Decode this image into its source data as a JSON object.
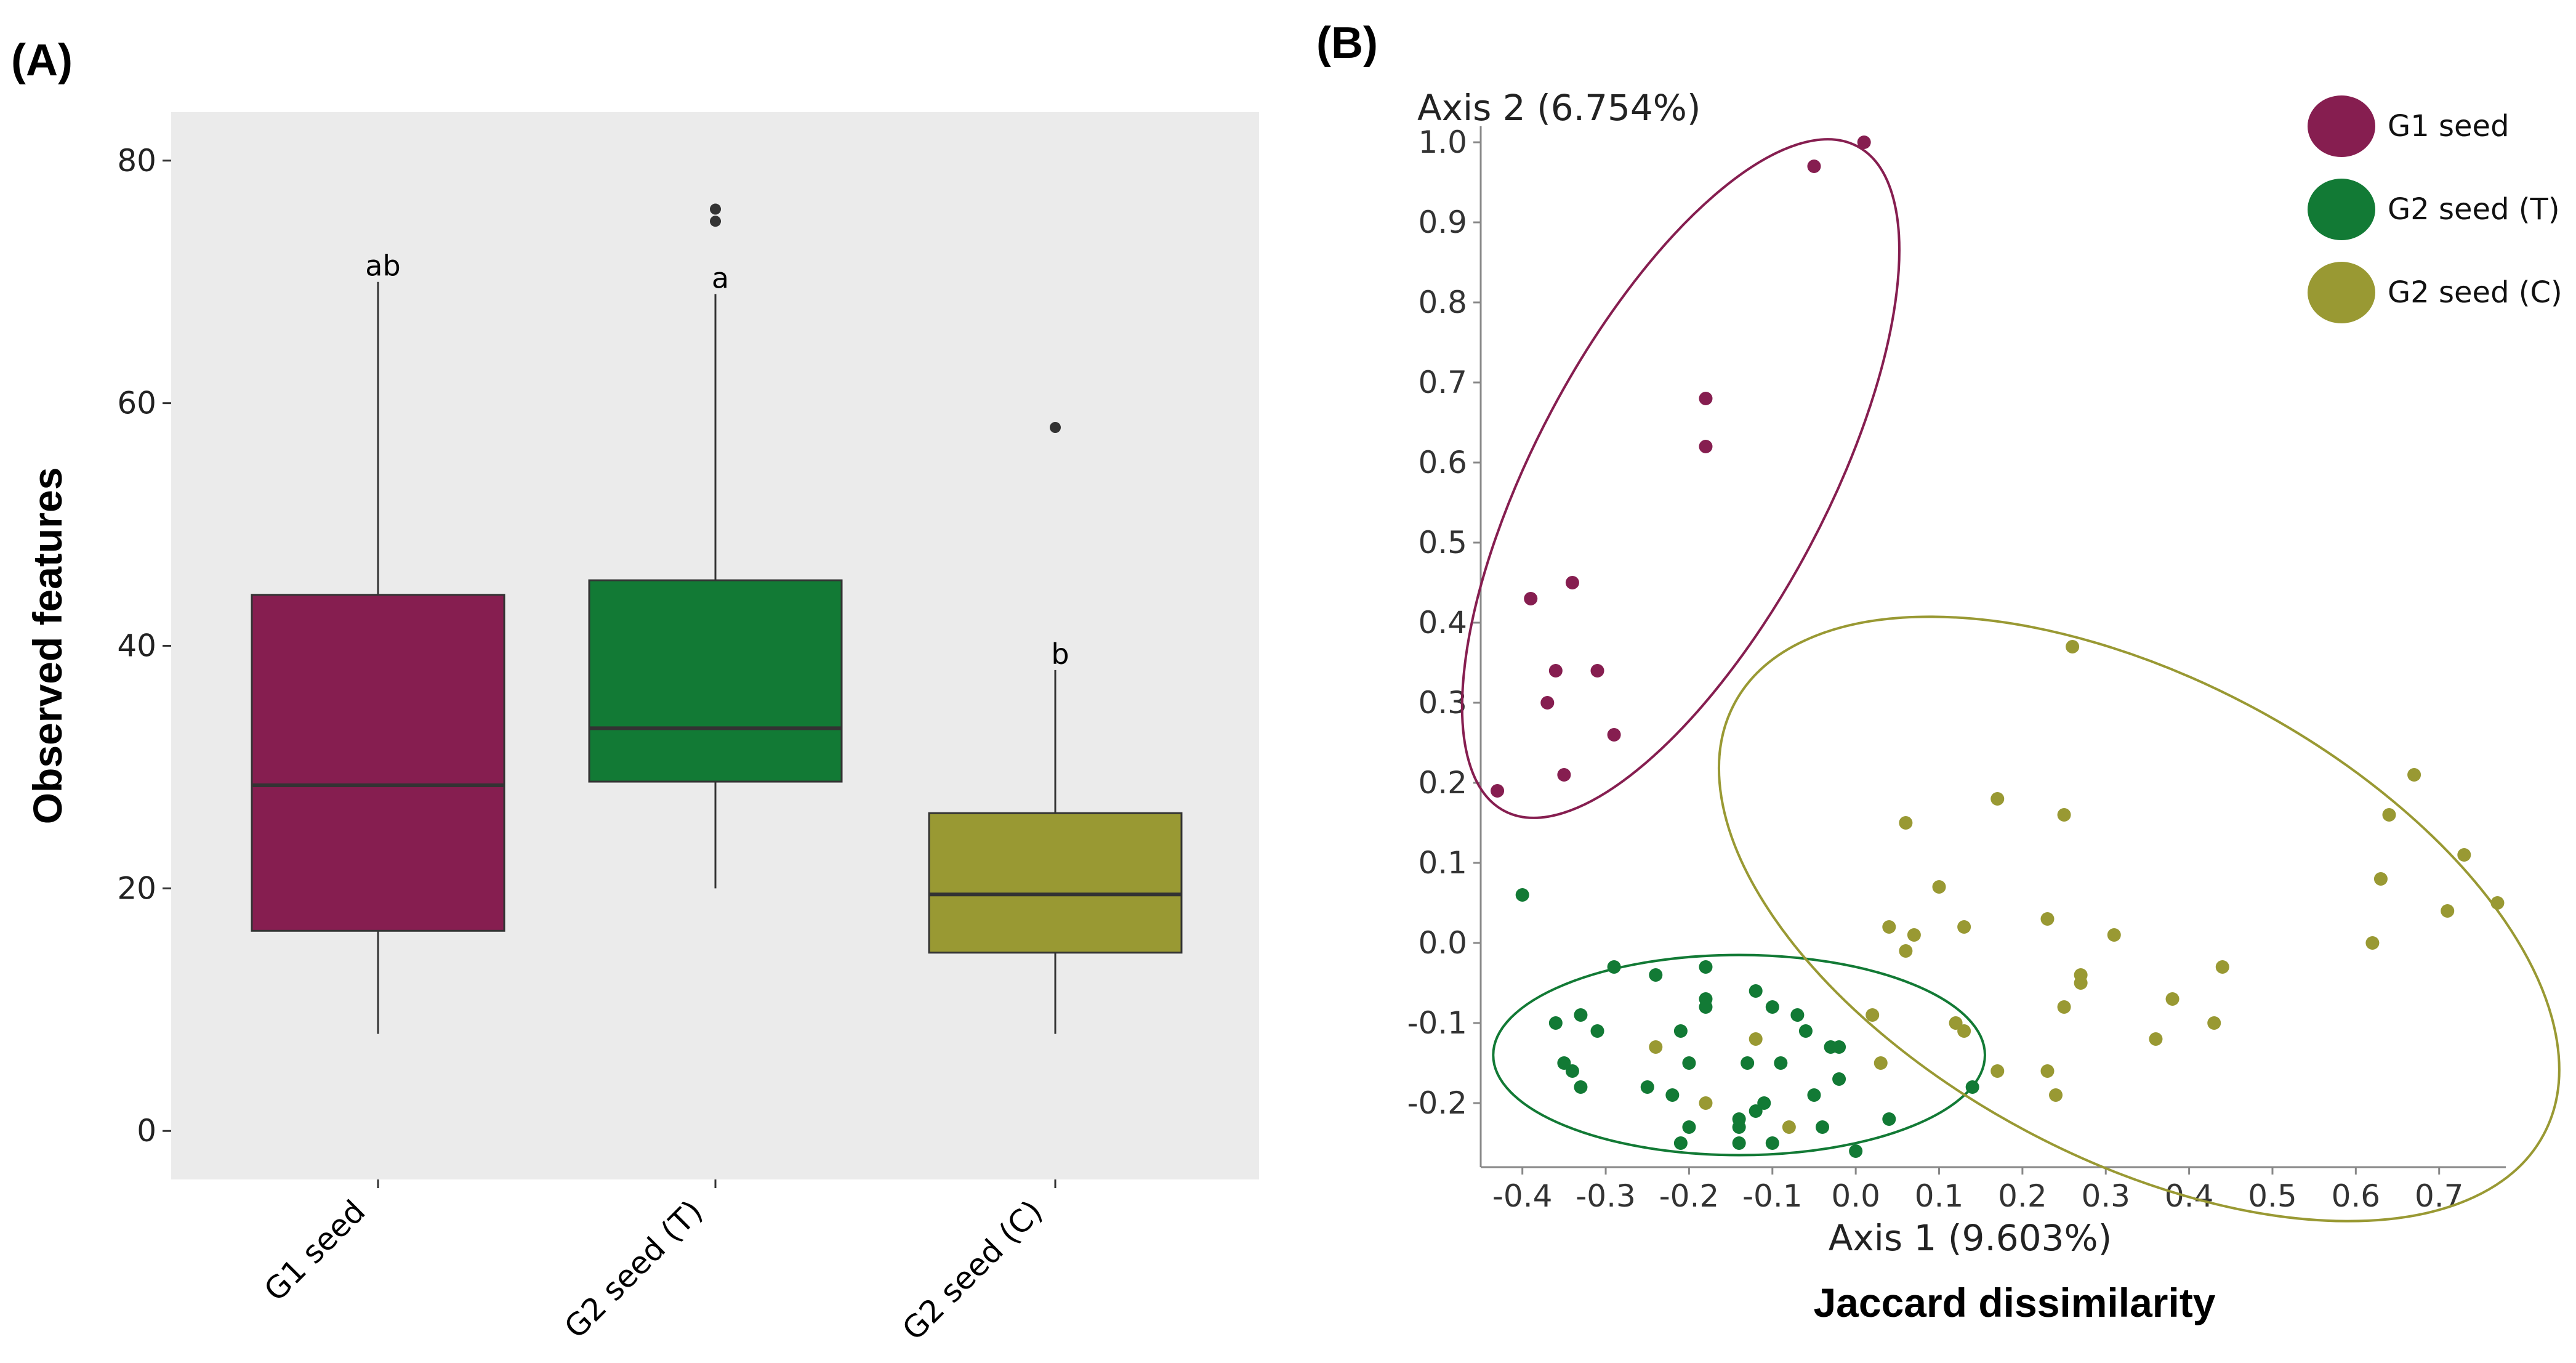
{
  "panel_a_label": "(A)",
  "panel_b_label": "(B)",
  "chart_data": [
    {
      "type": "box",
      "panel": "(A)",
      "title": "",
      "xlabel": "",
      "ylabel": "Observed features",
      "ylim": [
        -4,
        84
      ],
      "yticks": [
        "0",
        "20",
        "40",
        "60",
        "80"
      ],
      "categories": [
        "G1 seed",
        "G2 seed  (T)",
        "G2 seed  (C)"
      ],
      "colors": [
        "#861e50",
        "#127a35",
        "#999933"
      ],
      "boxes": [
        {
          "name": "G1 seed",
          "whisker_low": 8,
          "q1": 16.5,
          "median": 28.5,
          "q3": 44.2,
          "whisker_high": 70,
          "outliers": [],
          "letter": "ab"
        },
        {
          "name": "G2 seed  (T)",
          "whisker_low": 20,
          "q1": 28.8,
          "median": 33.2,
          "q3": 45.4,
          "whisker_high": 69,
          "outliers": [
            75,
            76
          ],
          "letter": "a"
        },
        {
          "name": "G2 seed  (C)",
          "whisker_low": 8,
          "q1": 14.7,
          "median": 19.5,
          "q3": 26.2,
          "whisker_high": 38,
          "outliers": [
            58
          ],
          "letter": "b"
        }
      ]
    },
    {
      "type": "scatter",
      "panel": "(B)",
      "subtitle": "Jaccard dissimilarity",
      "xlabel": "Axis 1 (9.603%)",
      "ylabel": "Axis 2 (6.754%)",
      "xlim": [
        -0.45,
        0.78
      ],
      "ylim": [
        -0.28,
        1.02
      ],
      "xticks": [
        "-0.4",
        "-0.3",
        "-0.2",
        "-0.1",
        "0.0",
        "0.1",
        "0.2",
        "0.3",
        "0.4",
        "0.5",
        "0.6",
        "0.7"
      ],
      "yticks": [
        "-0.2",
        "-0.1",
        "0.0",
        "0.1",
        "0.2",
        "0.3",
        "0.4",
        "0.5",
        "0.6",
        "0.7",
        "0.8",
        "0.9",
        "1.0"
      ],
      "series": [
        {
          "name": "G1 seed",
          "color": "#861e50",
          "x": [
            0.01,
            -0.05,
            -0.18,
            -0.18,
            -0.39,
            -0.34,
            -0.36,
            -0.31,
            -0.37,
            -0.29,
            -0.35,
            -0.43
          ],
          "y": [
            1.0,
            0.97,
            0.68,
            0.62,
            0.43,
            0.45,
            0.34,
            0.34,
            0.3,
            0.26,
            0.21,
            0.19
          ]
        },
        {
          "name": "G2 seed (T)",
          "color": "#127a35",
          "x": [
            -0.4,
            -0.29,
            -0.24,
            -0.18,
            -0.12,
            -0.18,
            -0.18,
            -0.1,
            -0.07,
            -0.33,
            -0.36,
            -0.31,
            -0.21,
            -0.06,
            -0.03,
            -0.02,
            -0.35,
            -0.34,
            -0.2,
            -0.13,
            -0.09,
            -0.05,
            -0.33,
            -0.25,
            -0.11,
            -0.02,
            -0.22,
            -0.2,
            -0.12,
            -0.14,
            -0.04,
            -0.14,
            0.04,
            -0.1,
            0.0,
            -0.21,
            0.14,
            -0.14
          ],
          "y": [
            0.06,
            -0.03,
            -0.04,
            -0.03,
            -0.06,
            -0.07,
            -0.08,
            -0.08,
            -0.09,
            -0.09,
            -0.1,
            -0.11,
            -0.11,
            -0.11,
            -0.13,
            -0.13,
            -0.15,
            -0.16,
            -0.15,
            -0.15,
            -0.15,
            -0.19,
            -0.18,
            -0.18,
            -0.2,
            -0.17,
            -0.19,
            -0.23,
            -0.21,
            -0.22,
            -0.23,
            -0.23,
            -0.22,
            -0.25,
            -0.26,
            -0.25,
            -0.18,
            -0.25
          ]
        },
        {
          "name": "G2 seed (C)",
          "color": "#999933",
          "x": [
            0.26,
            0.17,
            0.25,
            0.06,
            0.67,
            0.64,
            0.73,
            0.63,
            0.1,
            0.04,
            0.07,
            0.13,
            0.23,
            0.31,
            0.71,
            0.77,
            0.62,
            0.27,
            0.06,
            0.27,
            0.44,
            0.25,
            0.38,
            0.43,
            0.36,
            0.02,
            0.12,
            0.13,
            0.23,
            0.24,
            0.17,
            -0.12,
            0.03,
            -0.18,
            -0.08,
            -0.24
          ],
          "y": [
            0.37,
            0.18,
            0.16,
            0.15,
            0.21,
            0.16,
            0.11,
            0.08,
            0.07,
            0.02,
            0.01,
            0.02,
            0.03,
            0.01,
            0.04,
            0.05,
            0.0,
            -0.04,
            -0.01,
            -0.05,
            -0.03,
            -0.08,
            -0.07,
            -0.1,
            -0.12,
            -0.09,
            -0.1,
            -0.11,
            -0.16,
            -0.19,
            -0.16,
            -0.12,
            -0.15,
            -0.2,
            -0.23,
            -0.13
          ]
        }
      ],
      "ellipses": [
        {
          "name": "G1 seed",
          "color": "#861e50",
          "center": [
            -0.21,
            0.58
          ],
          "semi_axes": [
            0.175,
            0.47
          ],
          "tilt_deg": 28
        },
        {
          "name": "G2 seed (T)",
          "color": "#127a35",
          "center": [
            -0.14,
            -0.14
          ],
          "semi_axes": [
            0.295,
            0.125
          ],
          "tilt_deg": 0
        },
        {
          "name": "G2 seed (C)",
          "color": "#999933",
          "center": [
            0.34,
            0.03
          ],
          "semi_axes": [
            0.55,
            0.3
          ],
          "tilt_deg": 28
        }
      ],
      "legend": {
        "position": "top-right",
        "entries": [
          "G1 seed",
          "G2 seed (T)",
          "G2 seed (C)"
        ]
      }
    }
  ]
}
